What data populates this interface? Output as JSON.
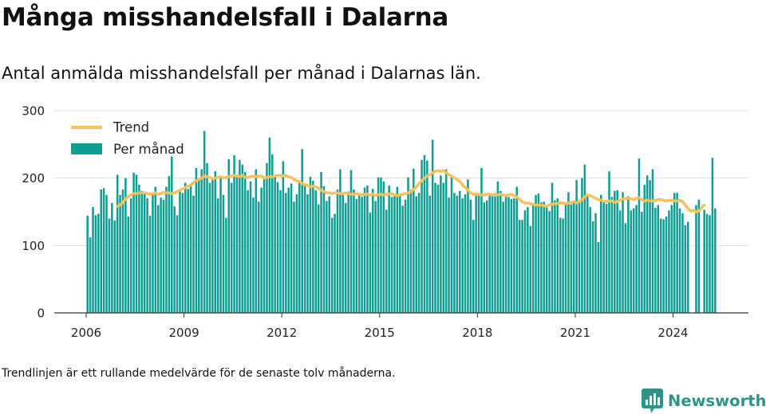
{
  "header": {
    "title": "Många misshandelsfall i Dalarna",
    "subtitle": "Antal anmälda misshandelsfall per månad i Dalarnas län."
  },
  "footer": {
    "note": "Trendlinjen är ett rullande medelvärde för de senaste tolv månaderna.",
    "brand": "Newsworthy"
  },
  "colors": {
    "bar": "#0e9e93",
    "trend": "#f8c15a",
    "grid": "#dddddd",
    "axis": "#333333",
    "brand": "#2f9488"
  },
  "chart_data": {
    "type": "bar",
    "x_unit": "month",
    "x_start": "2006-01",
    "xticks": [
      "2006",
      "2009",
      "2012",
      "2015",
      "2018",
      "2021",
      "2024"
    ],
    "yticks": [
      0,
      100,
      200,
      300
    ],
    "ylim": [
      0,
      300
    ],
    "grid": "horizontal",
    "legend": {
      "placement": "top-left"
    },
    "series": [
      {
        "name": "Per månad",
        "kind": "bar",
        "values": [
          144,
          112,
          157,
          145,
          147,
          183,
          185,
          175,
          140,
          163,
          137,
          205,
          175,
          183,
          200,
          143,
          170,
          208,
          205,
          190,
          181,
          177,
          170,
          144,
          175,
          187,
          160,
          171,
          168,
          187,
          203,
          232,
          158,
          145,
          181,
          178,
          193,
          184,
          188,
          174,
          215,
          199,
          213,
          270,
          222,
          193,
          200,
          210,
          170,
          200,
          175,
          141,
          228,
          193,
          234,
          205,
          227,
          220,
          209,
          182,
          195,
          171,
          213,
          165,
          186,
          201,
          222,
          260,
          235,
          203,
          194,
          182,
          225,
          178,
          186,
          192,
          165,
          176,
          196,
          243,
          189,
          176,
          202,
          196,
          182,
          161,
          209,
          188,
          166,
          173,
          141,
          147,
          183,
          213,
          175,
          163,
          180,
          212,
          183,
          169,
          177,
          172,
          186,
          189,
          149,
          184,
          166,
          201,
          201,
          195,
          153,
          189,
          172,
          174,
          187,
          176,
          159,
          168,
          201,
          183,
          214,
          173,
          178,
          227,
          234,
          226,
          174,
          257,
          193,
          190,
          204,
          193,
          213,
          171,
          202,
          178,
          174,
          181,
          170,
          176,
          198,
          168,
          138,
          178,
          174,
          215,
          164,
          167,
          174,
          173,
          173,
          195,
          181,
          165,
          176,
          172,
          169,
          170,
          187,
          138,
          138,
          152,
          157,
          129,
          160,
          175,
          177,
          164,
          165,
          157,
          151,
          193,
          167,
          170,
          141,
          140,
          161,
          179,
          161,
          167,
          197,
          164,
          200,
          220,
          175,
          157,
          136,
          148,
          105,
          175,
          164,
          162,
          210,
          172,
          181,
          182,
          152,
          179,
          133,
          173,
          152,
          155,
          160,
          229,
          150,
          190,
          204,
          197,
          213,
          156,
          160,
          140,
          139,
          143,
          152,
          160,
          178,
          178,
          155,
          148,
          130,
          135,
          0,
          0,
          160,
          168,
          0,
          153,
          147,
          145,
          230,
          155
        ]
      },
      {
        "name": "Trend",
        "kind": "line",
        "start_month": "2006-12",
        "values": [
          158,
          160,
          164,
          169,
          173,
          175,
          177,
          177,
          178,
          178,
          178,
          177,
          176,
          177,
          178,
          176,
          177,
          179,
          178,
          178,
          177,
          178,
          180,
          182,
          184,
          186,
          188,
          190,
          193,
          196,
          198,
          200,
          203,
          202,
          201,
          199,
          200,
          201,
          202,
          200,
          201,
          202,
          203,
          204,
          203,
          202,
          204,
          201,
          201,
          202,
          203,
          202,
          203,
          203,
          200,
          201,
          202,
          202,
          203,
          204,
          204,
          203,
          204,
          202,
          201,
          198,
          196,
          195,
          192,
          190,
          189,
          187,
          188,
          187,
          185,
          182,
          180,
          178,
          178,
          177,
          178,
          178,
          177,
          177,
          178,
          177,
          176,
          176,
          177,
          176,
          175,
          176,
          176,
          175,
          176,
          174,
          175,
          176,
          175,
          176,
          176,
          177,
          175,
          174,
          175,
          176,
          177,
          178,
          180,
          183,
          187,
          192,
          196,
          200,
          203,
          205,
          208,
          210,
          211,
          210,
          211,
          208,
          205,
          203,
          200,
          198,
          195,
          190,
          186,
          182,
          178,
          176,
          176,
          176,
          175,
          175,
          176,
          176,
          175,
          176,
          175,
          176,
          175,
          174,
          175,
          176,
          174,
          172,
          168,
          165,
          163,
          163,
          162,
          161,
          160,
          160,
          160,
          159,
          158,
          160,
          161,
          162,
          162,
          163,
          163,
          162,
          163,
          164,
          165,
          163,
          165,
          168,
          172,
          175,
          174,
          172,
          170,
          168,
          167,
          166,
          165,
          166,
          166,
          164,
          165,
          167,
          169,
          170,
          170,
          169,
          168,
          170,
          171,
          168,
          166,
          167,
          166,
          166,
          167,
          168,
          168,
          167,
          166,
          167,
          167,
          166,
          166,
          167,
          165,
          160,
          155,
          151,
          152,
          150,
          151,
          156,
          160
        ]
      }
    ]
  }
}
